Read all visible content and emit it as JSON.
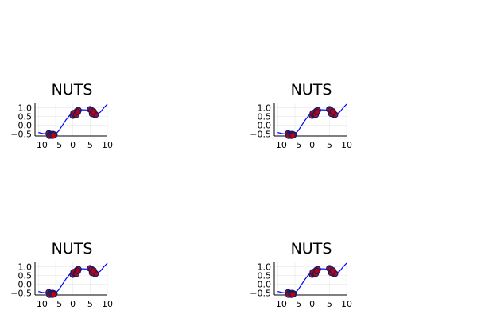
{
  "chart_data": [
    {
      "type": "line+scatter",
      "title": "NUTS",
      "xlim": [
        -11,
        10
      ],
      "ylim": [
        -0.62,
        1.25
      ],
      "x_ticks": [
        -10,
        -5,
        0,
        5,
        10
      ],
      "x_tick_labels": [
        "-10",
        "-5",
        "0",
        "5",
        "10"
      ],
      "y_ticks": [
        -0.5,
        0.0,
        0.5,
        1.0
      ],
      "y_tick_labels": [
        "-0.5",
        "0.0",
        "0.5",
        "1.0"
      ],
      "grid": true,
      "legend": "none",
      "line_color": "#0000ff",
      "line": {
        "x": [
          -10,
          -9,
          -8,
          -7,
          -6,
          -5.2,
          -4,
          -3,
          -2,
          -1,
          0,
          1,
          2,
          3,
          4,
          5,
          6,
          7,
          8,
          9,
          10
        ],
        "y": [
          -0.42,
          -0.47,
          -0.5,
          -0.53,
          -0.55,
          -0.55,
          -0.3,
          0.0,
          0.3,
          0.55,
          0.75,
          0.85,
          0.88,
          0.88,
          0.87,
          0.85,
          0.7,
          0.62,
          0.75,
          1.0,
          1.2
        ]
      },
      "scatter_color": "#cc0000",
      "scatter_edge_color": "#1a1a66",
      "points": {
        "x": [
          -7.0,
          -6.6,
          -6.2,
          -5.8,
          -5.4,
          -6.8,
          -6.0,
          -5.6,
          0.0,
          0.4,
          0.8,
          1.2,
          1.6,
          0.2,
          1.0,
          1.4,
          5.0,
          5.4,
          5.8,
          6.2,
          6.6,
          5.6,
          6.0
        ],
        "y": [
          -0.48,
          -0.52,
          -0.55,
          -0.52,
          -0.55,
          -0.6,
          -0.6,
          -0.58,
          0.55,
          0.62,
          0.72,
          0.8,
          0.85,
          0.68,
          0.6,
          0.75,
          0.9,
          0.85,
          0.72,
          0.62,
          0.6,
          0.65,
          0.78
        ]
      }
    },
    {
      "type": "line+scatter",
      "title": "NUTS",
      "xlim": [
        -11,
        10
      ],
      "ylim": [
        -0.62,
        1.25
      ],
      "x_ticks": [
        -10,
        -5,
        0,
        5,
        10
      ],
      "x_tick_labels": [
        "-10",
        "-5",
        "0",
        "5",
        "10"
      ],
      "y_ticks": [
        -0.5,
        0.0,
        0.5,
        1.0
      ],
      "y_tick_labels": [
        "-0.5",
        "0.0",
        "0.5",
        "1.0"
      ],
      "grid": true,
      "legend": "none",
      "line_color": "#0000ff",
      "line": {
        "x": [
          -10,
          -9,
          -8,
          -7,
          -6,
          -5.2,
          -4,
          -3,
          -2,
          -1,
          0,
          1,
          2,
          3,
          4,
          5,
          6,
          7,
          8,
          9,
          10
        ],
        "y": [
          -0.42,
          -0.47,
          -0.5,
          -0.53,
          -0.55,
          -0.55,
          -0.3,
          0.0,
          0.3,
          0.55,
          0.75,
          0.85,
          0.88,
          0.88,
          0.87,
          0.85,
          0.7,
          0.62,
          0.75,
          1.0,
          1.2
        ]
      },
      "scatter_color": "#cc0000",
      "scatter_edge_color": "#1a1a66",
      "points": {
        "x": [
          -7.0,
          -6.6,
          -6.2,
          -5.8,
          -5.4,
          -6.8,
          -6.0,
          -5.6,
          0.0,
          0.4,
          0.8,
          1.2,
          1.6,
          0.2,
          1.0,
          1.4,
          5.0,
          5.4,
          5.8,
          6.2,
          6.6,
          5.6,
          6.0
        ],
        "y": [
          -0.48,
          -0.52,
          -0.55,
          -0.52,
          -0.55,
          -0.6,
          -0.6,
          -0.58,
          0.55,
          0.62,
          0.72,
          0.8,
          0.85,
          0.68,
          0.6,
          0.75,
          0.9,
          0.85,
          0.72,
          0.62,
          0.6,
          0.65,
          0.78
        ]
      }
    },
    {
      "type": "line+scatter",
      "title": "NUTS",
      "xlim": [
        -11,
        10
      ],
      "ylim": [
        -0.62,
        1.25
      ],
      "x_ticks": [
        -10,
        -5,
        0,
        5,
        10
      ],
      "x_tick_labels": [
        "-10",
        "-5",
        "0",
        "5",
        "10"
      ],
      "y_ticks": [
        -0.5,
        0.0,
        0.5,
        1.0
      ],
      "y_tick_labels": [
        "-0.5",
        "0.0",
        "0.5",
        "1.0"
      ],
      "grid": true,
      "legend": "none",
      "line_color": "#0000ff",
      "line": {
        "x": [
          -10,
          -9,
          -8,
          -7,
          -6,
          -5.2,
          -4,
          -3,
          -2,
          -1,
          0,
          1,
          2,
          3,
          4,
          5,
          6,
          7,
          8,
          9,
          10
        ],
        "y": [
          -0.42,
          -0.47,
          -0.5,
          -0.53,
          -0.55,
          -0.55,
          -0.3,
          0.0,
          0.3,
          0.55,
          0.75,
          0.85,
          0.88,
          0.88,
          0.87,
          0.85,
          0.7,
          0.62,
          0.75,
          1.0,
          1.2
        ]
      },
      "scatter_color": "#cc0000",
      "scatter_edge_color": "#1a1a66",
      "points": {
        "x": [
          -7.0,
          -6.6,
          -6.2,
          -5.8,
          -5.4,
          -6.8,
          -6.0,
          -5.6,
          0.0,
          0.4,
          0.8,
          1.2,
          1.6,
          0.2,
          1.0,
          1.4,
          5.0,
          5.4,
          5.8,
          6.2,
          6.6,
          5.6,
          6.0
        ],
        "y": [
          -0.48,
          -0.52,
          -0.55,
          -0.52,
          -0.55,
          -0.6,
          -0.6,
          -0.58,
          0.55,
          0.62,
          0.72,
          0.8,
          0.85,
          0.68,
          0.6,
          0.75,
          0.9,
          0.85,
          0.72,
          0.62,
          0.6,
          0.65,
          0.78
        ]
      }
    },
    {
      "type": "line+scatter",
      "title": "NUTS",
      "xlim": [
        -11,
        10
      ],
      "ylim": [
        -0.62,
        1.25
      ],
      "x_ticks": [
        -10,
        -5,
        0,
        5,
        10
      ],
      "x_tick_labels": [
        "-10",
        "-5",
        "0",
        "5",
        "10"
      ],
      "y_ticks": [
        -0.5,
        0.0,
        0.5,
        1.0
      ],
      "y_tick_labels": [
        "-0.5",
        "0.0",
        "0.5",
        "1.0"
      ],
      "grid": true,
      "legend": "none",
      "line_color": "#0000ff",
      "line": {
        "x": [
          -10,
          -9,
          -8,
          -7,
          -6,
          -5.2,
          -4,
          -3,
          -2,
          -1,
          0,
          1,
          2,
          3,
          4,
          5,
          6,
          7,
          8,
          9,
          10
        ],
        "y": [
          -0.42,
          -0.47,
          -0.5,
          -0.53,
          -0.55,
          -0.55,
          -0.3,
          0.0,
          0.3,
          0.55,
          0.75,
          0.85,
          0.88,
          0.88,
          0.87,
          0.85,
          0.7,
          0.62,
          0.75,
          1.0,
          1.2
        ]
      },
      "scatter_color": "#cc0000",
      "scatter_edge_color": "#1a1a66",
      "points": {
        "x": [
          -7.0,
          -6.6,
          -6.2,
          -5.8,
          -5.4,
          -6.8,
          -6.0,
          -5.6,
          0.0,
          0.4,
          0.8,
          1.2,
          1.6,
          0.2,
          1.0,
          1.4,
          5.0,
          5.4,
          5.8,
          6.2,
          6.6,
          5.6,
          6.0
        ],
        "y": [
          -0.48,
          -0.52,
          -0.55,
          -0.52,
          -0.55,
          -0.6,
          -0.6,
          -0.58,
          0.55,
          0.62,
          0.72,
          0.8,
          0.85,
          0.68,
          0.6,
          0.75,
          0.9,
          0.85,
          0.72,
          0.62,
          0.6,
          0.65,
          0.78
        ]
      }
    }
  ]
}
